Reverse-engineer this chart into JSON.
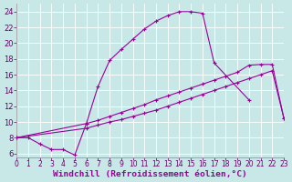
{
  "background_color": "#c8e8e8",
  "grid_color": "#ffffff",
  "line_color": "#990099",
  "xlim": [
    0,
    23
  ],
  "ylim": [
    5.5,
    25.0
  ],
  "yticks": [
    6,
    8,
    10,
    12,
    14,
    16,
    18,
    20,
    22,
    24
  ],
  "xticks": [
    0,
    1,
    2,
    3,
    4,
    5,
    6,
    7,
    8,
    9,
    10,
    11,
    12,
    13,
    14,
    15,
    16,
    17,
    18,
    19,
    20,
    21,
    22,
    23
  ],
  "xlabel": "Windchill (Refroidissement éolien,°C)",
  "curve1_x": [
    0,
    1,
    2,
    3,
    4,
    5,
    6,
    7,
    8,
    9,
    10,
    11,
    12,
    13,
    14,
    15,
    16,
    17,
    20
  ],
  "curve1_y": [
    8.0,
    8.0,
    7.2,
    6.5,
    6.5,
    5.8,
    9.8,
    14.5,
    17.8,
    19.2,
    20.5,
    21.8,
    22.8,
    23.5,
    24.0,
    24.0,
    23.8,
    17.5,
    12.8
  ],
  "curve2_x": [
    0,
    6,
    7,
    8,
    9,
    10,
    11,
    12,
    13,
    14,
    15,
    16,
    17,
    18,
    19,
    20,
    21,
    22,
    23
  ],
  "curve2_y": [
    8.0,
    9.8,
    10.2,
    10.7,
    11.2,
    11.7,
    12.2,
    12.8,
    13.3,
    13.8,
    14.3,
    14.8,
    15.3,
    15.8,
    16.3,
    17.2,
    17.3,
    17.3,
    10.5
  ],
  "curve3_x": [
    0,
    6,
    7,
    8,
    9,
    10,
    11,
    12,
    13,
    14,
    15,
    16,
    17,
    18,
    19,
    20,
    21,
    22,
    23
  ],
  "curve3_y": [
    8.0,
    9.2,
    9.6,
    10.0,
    10.3,
    10.7,
    11.1,
    11.5,
    12.0,
    12.5,
    13.0,
    13.5,
    14.0,
    14.5,
    15.0,
    15.5,
    16.0,
    16.5,
    10.5
  ]
}
